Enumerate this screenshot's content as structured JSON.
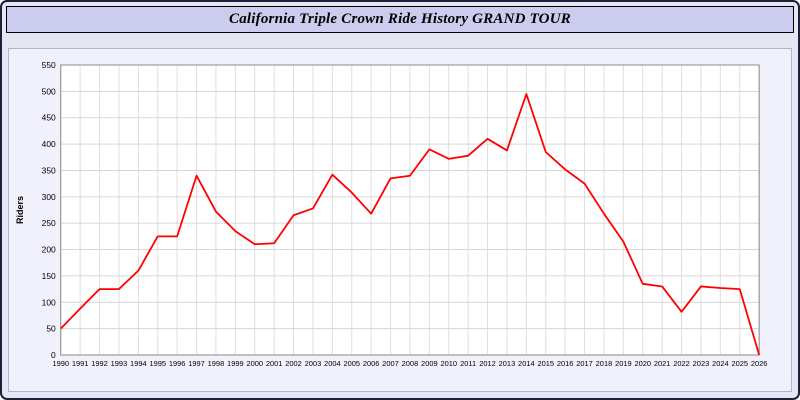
{
  "title": "California Triple Crown Ride History GRAND TOUR",
  "colors": {
    "line": "#ff0000",
    "plot_bg": "#ffffff",
    "panel_bg": "#f1f1fb",
    "title_bar_bg": "#ccccee",
    "page_bg": "#e6e6f2",
    "grid_h": "#d6d6d6",
    "grid_v": "#dedede",
    "plot_border": "#8a8a8a",
    "tick_text": "#000000"
  },
  "chart_data": {
    "type": "line",
    "title": "California Triple Crown Ride History GRAND TOUR",
    "xlabel": "",
    "ylabel": "Riders",
    "ylim": [
      0,
      550
    ],
    "ytick_step": 50,
    "grid": true,
    "legend": "none",
    "line_color": "#ff0000",
    "categories": [
      1990,
      1991,
      1992,
      1993,
      1994,
      1995,
      1996,
      1997,
      1998,
      1999,
      2000,
      2001,
      2002,
      2003,
      2004,
      2005,
      2006,
      2007,
      2008,
      2009,
      2010,
      2011,
      2012,
      2013,
      2014,
      2015,
      2016,
      2017,
      2018,
      2019,
      2020,
      2021,
      2022,
      2023,
      2024,
      2025,
      2026
    ],
    "values": [
      50,
      88,
      125,
      125,
      160,
      225,
      225,
      340,
      272,
      235,
      210,
      212,
      265,
      278,
      342,
      308,
      268,
      335,
      340,
      390,
      372,
      378,
      410,
      388,
      495,
      385,
      352,
      325,
      268,
      215,
      135,
      130,
      82,
      130,
      127,
      125,
      0
    ]
  }
}
